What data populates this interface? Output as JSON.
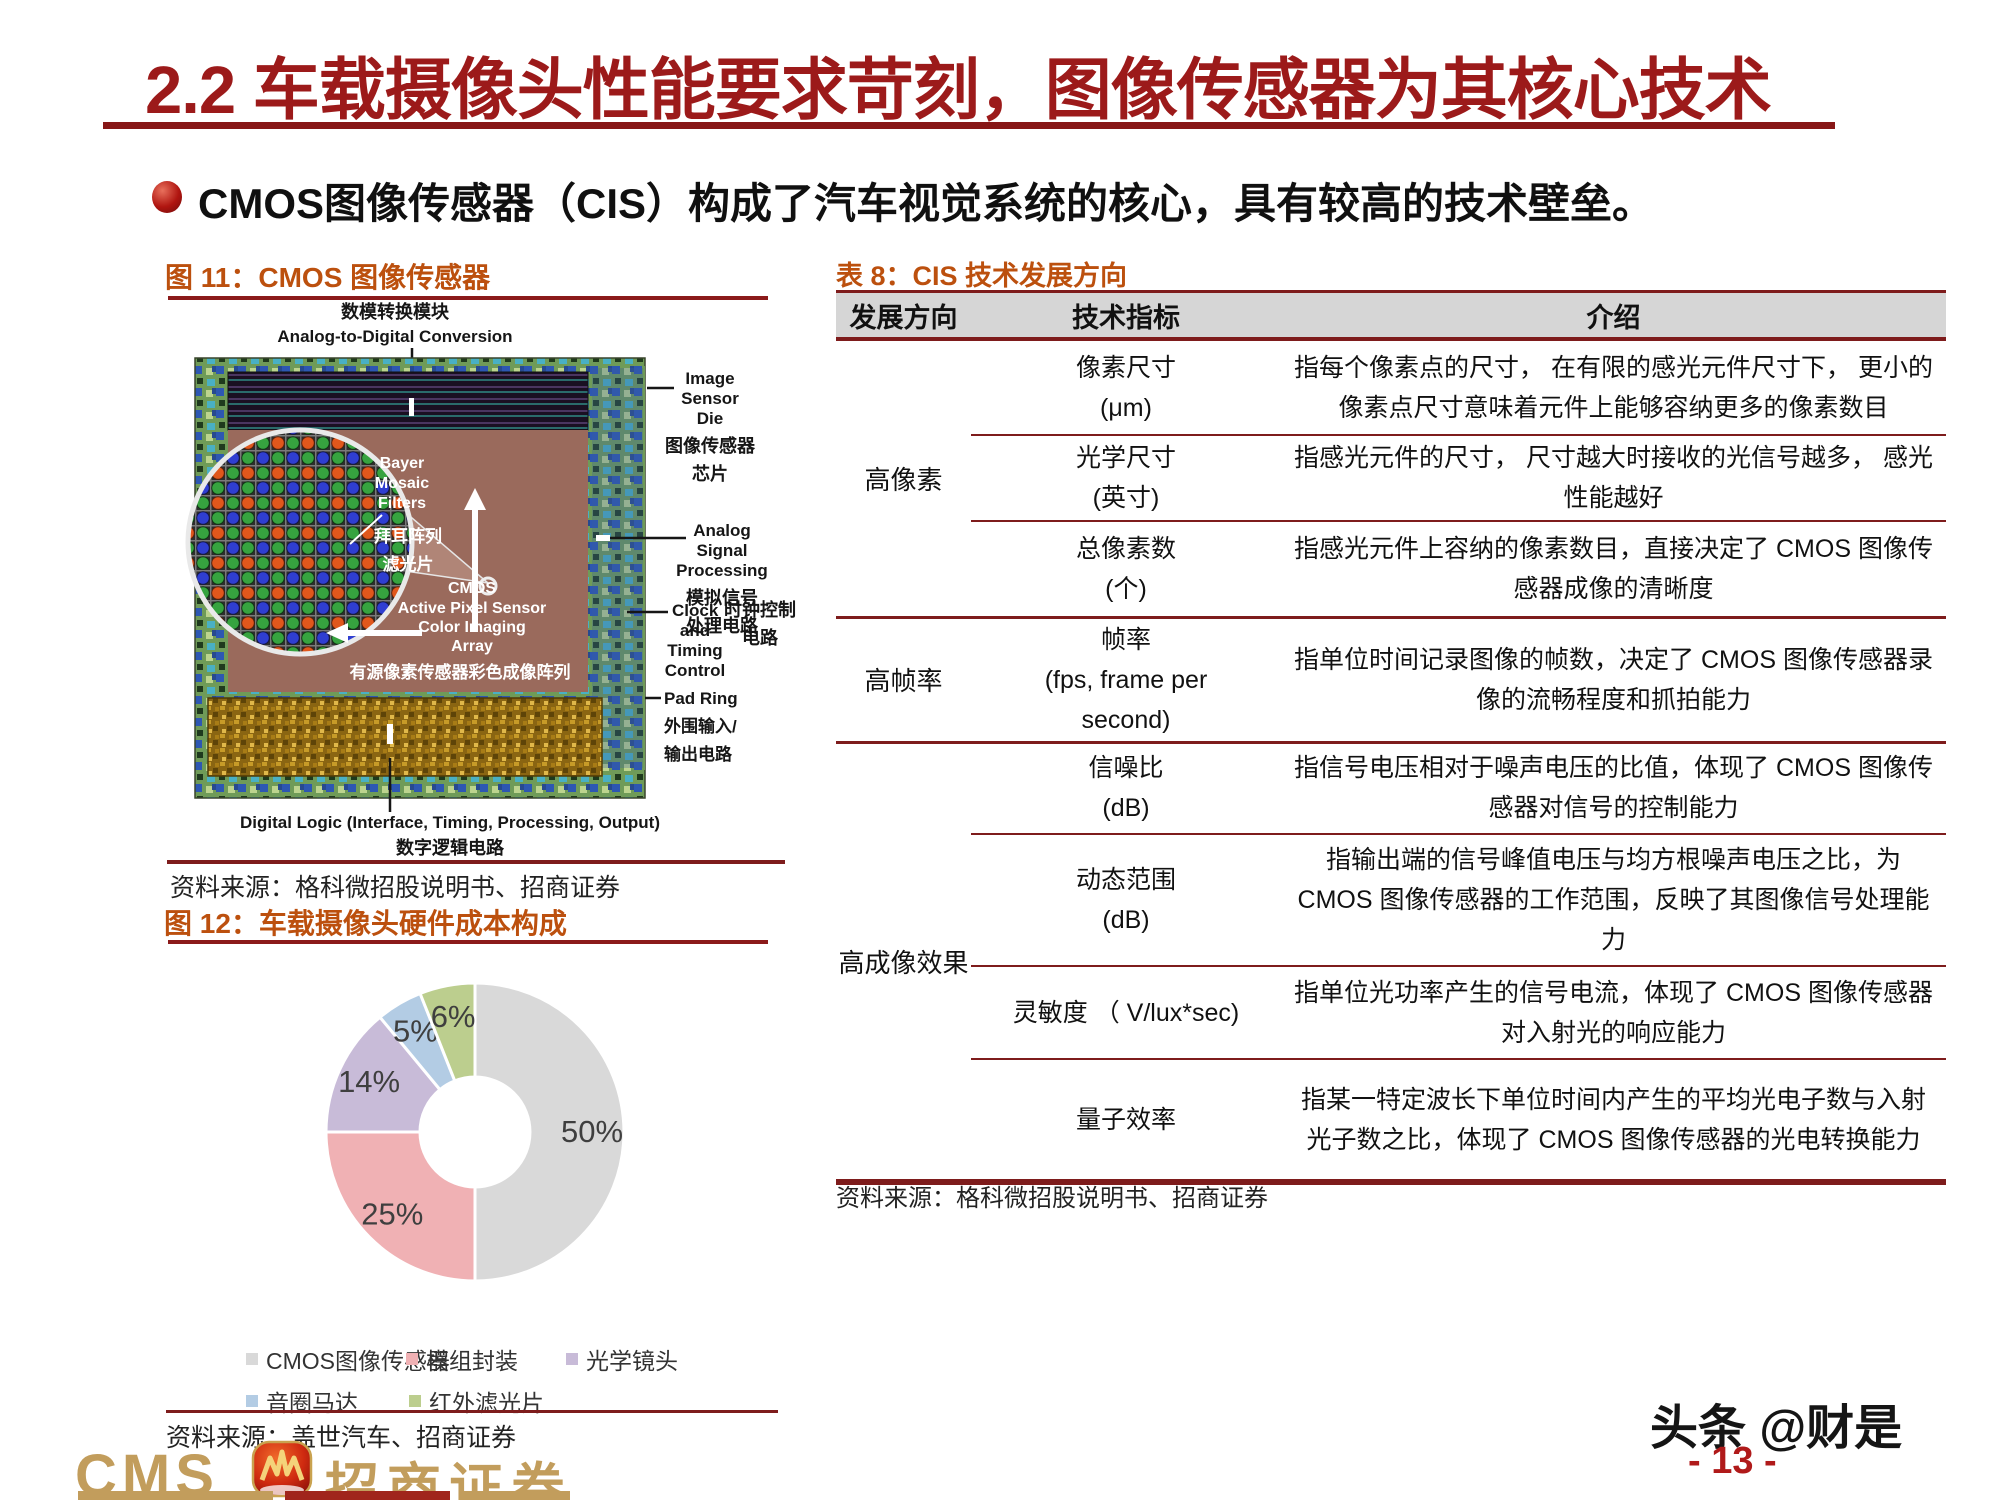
{
  "page": {
    "title": "2.2 车载摄像头性能要求苛刻，图像传感器为其核心技术",
    "bullet_text": "CMOS图像传感器（CIS）构成了汽车视觉系统的核心，具有较高的技术壁垒。",
    "watermark": "头条 @财是",
    "page_number": "- 13 -"
  },
  "figure11": {
    "caption": "图 11：CMOS 图像传感器",
    "source": "资料来源：格科微招股说明书、招商证券",
    "chip": {
      "adc_cn": "数模转换模块",
      "adc_en": "Analog-to-Digital Conversion",
      "die_en": [
        "Image",
        "Sensor",
        "Die"
      ],
      "die_cn": [
        "图像传感器",
        "芯片"
      ],
      "bayer_en": [
        "Bayer",
        "Mosaic",
        "Filters"
      ],
      "bayer_cn": [
        "拜耳阵列",
        "滤光片"
      ],
      "asp_en": [
        "Analog",
        "Signal",
        "Processing"
      ],
      "asp_cn": [
        "模拟信号",
        "处理电路"
      ],
      "aps_en": [
        "CMOS",
        "Active Pixel Sensor",
        "Color Imaging",
        "Array"
      ],
      "aps_cn": "有源像素传感器彩色成像阵列",
      "clock_en": [
        "Clock",
        "and",
        "Timing",
        "Control"
      ],
      "clock_cn": [
        "时钟控制",
        "电路"
      ],
      "pad_en": "Pad Ring",
      "pad_cn": [
        "外围输入/",
        "输出电路"
      ],
      "digital_en": "Digital Logic (Interface, Timing, Processing, Output)",
      "digital_cn": "数字逻辑电路"
    }
  },
  "figure12": {
    "caption": "图 12：车载摄像头硬件成本构成",
    "source": "资料来源：盖世汽车、招商证券"
  },
  "chart_data": {
    "type": "pie",
    "donut": true,
    "title": "车载摄像头硬件成本构成",
    "labels": [
      "CMOS图像传感器",
      "模组封装",
      "光学镜头",
      "音圈马达",
      "红外滤光片"
    ],
    "values": [
      50,
      25,
      14,
      5,
      6
    ],
    "unit": "%",
    "colors": [
      "#D9D9D9",
      "#F0B1B4",
      "#C8BBD8",
      "#B3CCE4",
      "#BCCE8E"
    ],
    "legend_position": "bottom",
    "start_angle_deg": 0,
    "direction": "clockwise"
  },
  "table8": {
    "title": "表 8：CIS 技术发展方向",
    "source": "资料来源：格科微招股说明书、招商证券",
    "headers": [
      "发展方向",
      "技术指标",
      "介绍"
    ],
    "groups": [
      {
        "direction": "高像素",
        "rows": [
          {
            "indicator": "像素尺寸\n(μm)",
            "desc": "指每个像素点的尺寸， 在有限的感光元件尺寸下， 更小的像素点尺寸意味着元件上能够容纳更多的像素数目"
          },
          {
            "indicator": "光学尺寸\n(英寸)",
            "desc": "指感光元件的尺寸， 尺寸越大时接收的光信号越多， 感光性能越好"
          },
          {
            "indicator": "总像素数\n(个)",
            "desc": "指感光元件上容纳的像素数目，直接决定了 CMOS 图像传感器成像的清晰度"
          }
        ]
      },
      {
        "direction": "高帧率",
        "rows": [
          {
            "indicator": "帧率\n(fps, frame per\nsecond)",
            "desc": "指单位时间记录图像的帧数，决定了 CMOS 图像传感器录像的流畅程度和抓拍能力"
          }
        ]
      },
      {
        "direction": "高成像效果",
        "rows": [
          {
            "indicator": "信噪比\n(dB)",
            "desc": "指信号电压相对于噪声电压的比值，体现了 CMOS 图像传感器对信号的控制能力"
          },
          {
            "indicator": "动态范围\n(dB)",
            "desc": "指输出端的信号峰值电压与均方根噪声电压之比，为 CMOS 图像传感器的工作范围，反映了其图像信号处理能力"
          },
          {
            "indicator": "灵敏度 （ V/lux*sec)",
            "desc": "指单位光功率产生的信号电流，体现了 CMOS 图像传感器对入射光的响应能力"
          },
          {
            "indicator": "量子效率",
            "desc": "指某一特定波长下单位时间内产生的平均光电子数与入射光子数之比，体现了 CMOS 图像传感器的光电转换能力"
          }
        ]
      }
    ]
  },
  "footer": {
    "logo_text": "CMS",
    "logo_cn": "招商证券"
  }
}
